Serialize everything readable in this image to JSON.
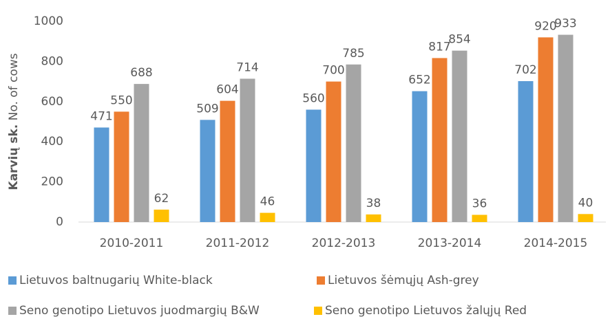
{
  "chart_data": {
    "type": "bar",
    "ylabel": [
      "Karvių sk.",
      "No. of cows"
    ],
    "categories": [
      "2010-2011",
      "2011-2012",
      "2012-2013",
      "2013-2014",
      "2014-2015"
    ],
    "series": [
      {
        "name": "Lietuvos baltnugarių White-black",
        "color": "#5b9bd5",
        "values": [
          471,
          509,
          560,
          652,
          702
        ]
      },
      {
        "name": "Lietuvos šėmųjų Ash-grey",
        "color": "#ed7d31",
        "values": [
          550,
          604,
          700,
          817,
          920
        ]
      },
      {
        "name": "Seno genotipo Lietuvos juodmargių B&W",
        "color": "#a5a5a5",
        "values": [
          688,
          714,
          785,
          854,
          933
        ]
      },
      {
        "name": "Seno genotipo Lietuvos žalųjų Red",
        "color": "#ffc000",
        "values": [
          62,
          46,
          38,
          36,
          40
        ]
      }
    ],
    "ylim": [
      0,
      1000
    ],
    "yticks": [
      0,
      200,
      400,
      600,
      800,
      1000
    ],
    "grid": false,
    "legend": "bottom"
  }
}
